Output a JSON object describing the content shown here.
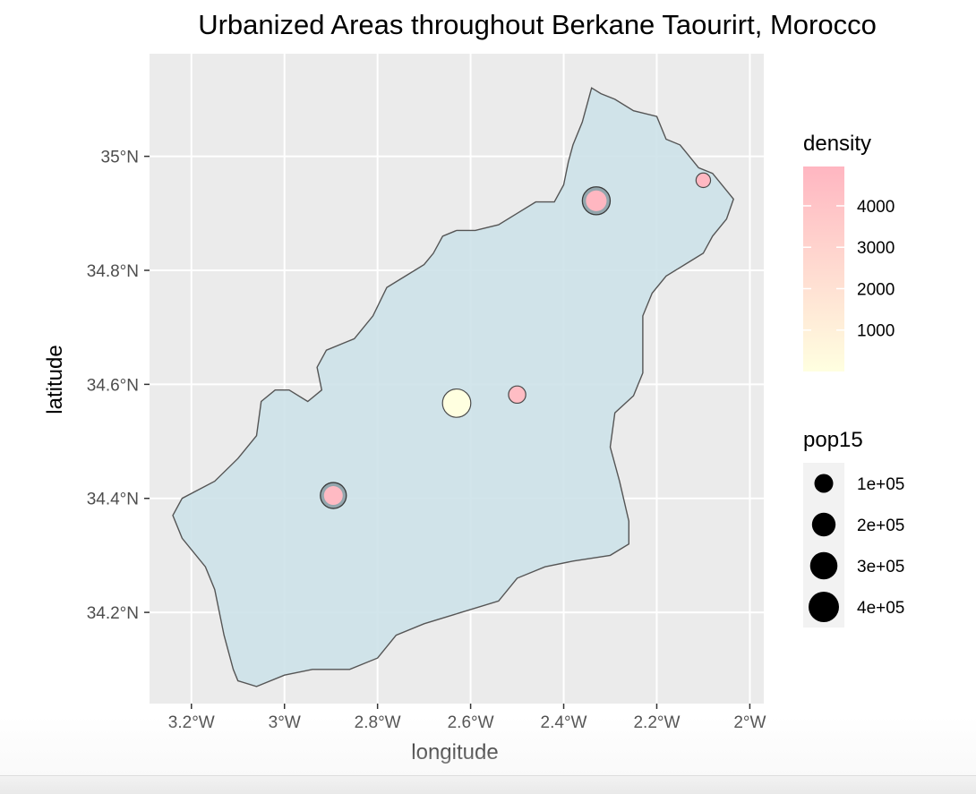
{
  "chart_data": {
    "type": "map",
    "title": "Urbanized Areas throughout Berkane Taourirt, Morocco",
    "xlabel": "longitude",
    "ylabel": "latitude",
    "xlim": [
      -3.29,
      -1.97
    ],
    "ylim": [
      34.04,
      35.18
    ],
    "x_ticks": [
      {
        "value": -3.2,
        "label": "3.2°W"
      },
      {
        "value": -3.0,
        "label": "3°W"
      },
      {
        "value": -2.8,
        "label": "2.8°W"
      },
      {
        "value": -2.6,
        "label": "2.6°W"
      },
      {
        "value": -2.4,
        "label": "2.4°W"
      },
      {
        "value": -2.2,
        "label": "2.2°W"
      },
      {
        "value": -2.0,
        "label": "2°W"
      }
    ],
    "y_ticks": [
      {
        "value": 35.0,
        "label": "35°N"
      },
      {
        "value": 34.8,
        "label": "34.8°N"
      },
      {
        "value": 34.6,
        "label": "34.6°N"
      },
      {
        "value": 34.4,
        "label": "34.4°N"
      },
      {
        "value": 34.2,
        "label": "34.2°N"
      }
    ],
    "grid": true,
    "panel_background": "#ebebeb",
    "region": {
      "fill": "#cde2e9",
      "stroke": "#555555",
      "outline": [
        [
          -2.34,
          35.12
        ],
        [
          -2.32,
          35.11
        ],
        [
          -2.29,
          35.1
        ],
        [
          -2.25,
          35.08
        ],
        [
          -2.2,
          35.07
        ],
        [
          -2.18,
          35.03
        ],
        [
          -2.15,
          35.02
        ],
        [
          -2.13,
          35.0
        ],
        [
          -2.11,
          34.98
        ],
        [
          -2.08,
          34.97
        ],
        [
          -2.05,
          34.94
        ],
        [
          -2.035,
          34.925
        ],
        [
          -2.05,
          34.89
        ],
        [
          -2.08,
          34.86
        ],
        [
          -2.1,
          34.83
        ],
        [
          -2.14,
          34.81
        ],
        [
          -2.18,
          34.79
        ],
        [
          -2.21,
          34.76
        ],
        [
          -2.23,
          34.72
        ],
        [
          -2.23,
          34.66
        ],
        [
          -2.23,
          34.62
        ],
        [
          -2.25,
          34.58
        ],
        [
          -2.29,
          34.55
        ],
        [
          -2.3,
          34.49
        ],
        [
          -2.28,
          34.43
        ],
        [
          -2.26,
          34.36
        ],
        [
          -2.26,
          34.32
        ],
        [
          -2.3,
          34.3
        ],
        [
          -2.38,
          34.29
        ],
        [
          -2.44,
          34.28
        ],
        [
          -2.5,
          34.26
        ],
        [
          -2.54,
          34.22
        ],
        [
          -2.62,
          34.2
        ],
        [
          -2.7,
          34.18
        ],
        [
          -2.76,
          34.16
        ],
        [
          -2.8,
          34.12
        ],
        [
          -2.86,
          34.1
        ],
        [
          -2.94,
          34.1
        ],
        [
          -3.0,
          34.09
        ],
        [
          -3.06,
          34.07
        ],
        [
          -3.1,
          34.08
        ],
        [
          -3.11,
          34.1
        ],
        [
          -3.13,
          34.16
        ],
        [
          -3.15,
          34.24
        ],
        [
          -3.17,
          34.28
        ],
        [
          -3.22,
          34.33
        ],
        [
          -3.24,
          34.37
        ],
        [
          -3.22,
          34.4
        ],
        [
          -3.15,
          34.43
        ],
        [
          -3.1,
          34.47
        ],
        [
          -3.06,
          34.51
        ],
        [
          -3.05,
          34.57
        ],
        [
          -3.02,
          34.59
        ],
        [
          -2.99,
          34.59
        ],
        [
          -2.95,
          34.57
        ],
        [
          -2.92,
          34.59
        ],
        [
          -2.93,
          34.63
        ],
        [
          -2.91,
          34.66
        ],
        [
          -2.85,
          34.68
        ],
        [
          -2.81,
          34.72
        ],
        [
          -2.78,
          34.77
        ],
        [
          -2.74,
          34.79
        ],
        [
          -2.7,
          34.81
        ],
        [
          -2.68,
          34.83
        ],
        [
          -2.66,
          34.86
        ],
        [
          -2.63,
          34.87
        ],
        [
          -2.59,
          34.87
        ],
        [
          -2.54,
          34.88
        ],
        [
          -2.5,
          34.9
        ],
        [
          -2.46,
          34.92
        ],
        [
          -2.42,
          34.92
        ],
        [
          -2.4,
          34.95
        ],
        [
          -2.39,
          34.99
        ],
        [
          -2.38,
          35.02
        ],
        [
          -2.36,
          35.06
        ],
        [
          -2.35,
          35.09
        ]
      ]
    },
    "points": [
      {
        "lon": -2.895,
        "lat": 34.405,
        "density": 4700,
        "pop15": 100000,
        "buffer": true
      },
      {
        "lon": -2.5,
        "lat": 34.582,
        "density": 4500,
        "pop15": 75000,
        "buffer": false
      },
      {
        "lon": -2.63,
        "lat": 34.567,
        "density": 10,
        "pop15": 330000,
        "buffer": false
      },
      {
        "lon": -2.33,
        "lat": 34.922,
        "density": 4900,
        "pop15": 135000,
        "buffer": true
      },
      {
        "lon": -2.1,
        "lat": 34.958,
        "density": 4800,
        "pop15": 40000,
        "buffer": false
      }
    ],
    "legend_density": {
      "title": "density",
      "low_color": "#ffffe0",
      "high_color": "#ffb6c1",
      "range": [
        0,
        4950
      ],
      "breaks": [
        {
          "value": 4000,
          "label": "4000"
        },
        {
          "value": 3000,
          "label": "3000"
        },
        {
          "value": 2000,
          "label": "2000"
        },
        {
          "value": 1000,
          "label": "1000"
        }
      ]
    },
    "legend_pop15": {
      "title": "pop15",
      "items": [
        {
          "value": 100000,
          "label": "1e+05"
        },
        {
          "value": 200000,
          "label": "2e+05"
        },
        {
          "value": 300000,
          "label": "3e+05"
        },
        {
          "value": 400000,
          "label": "4e+05"
        }
      ]
    }
  }
}
